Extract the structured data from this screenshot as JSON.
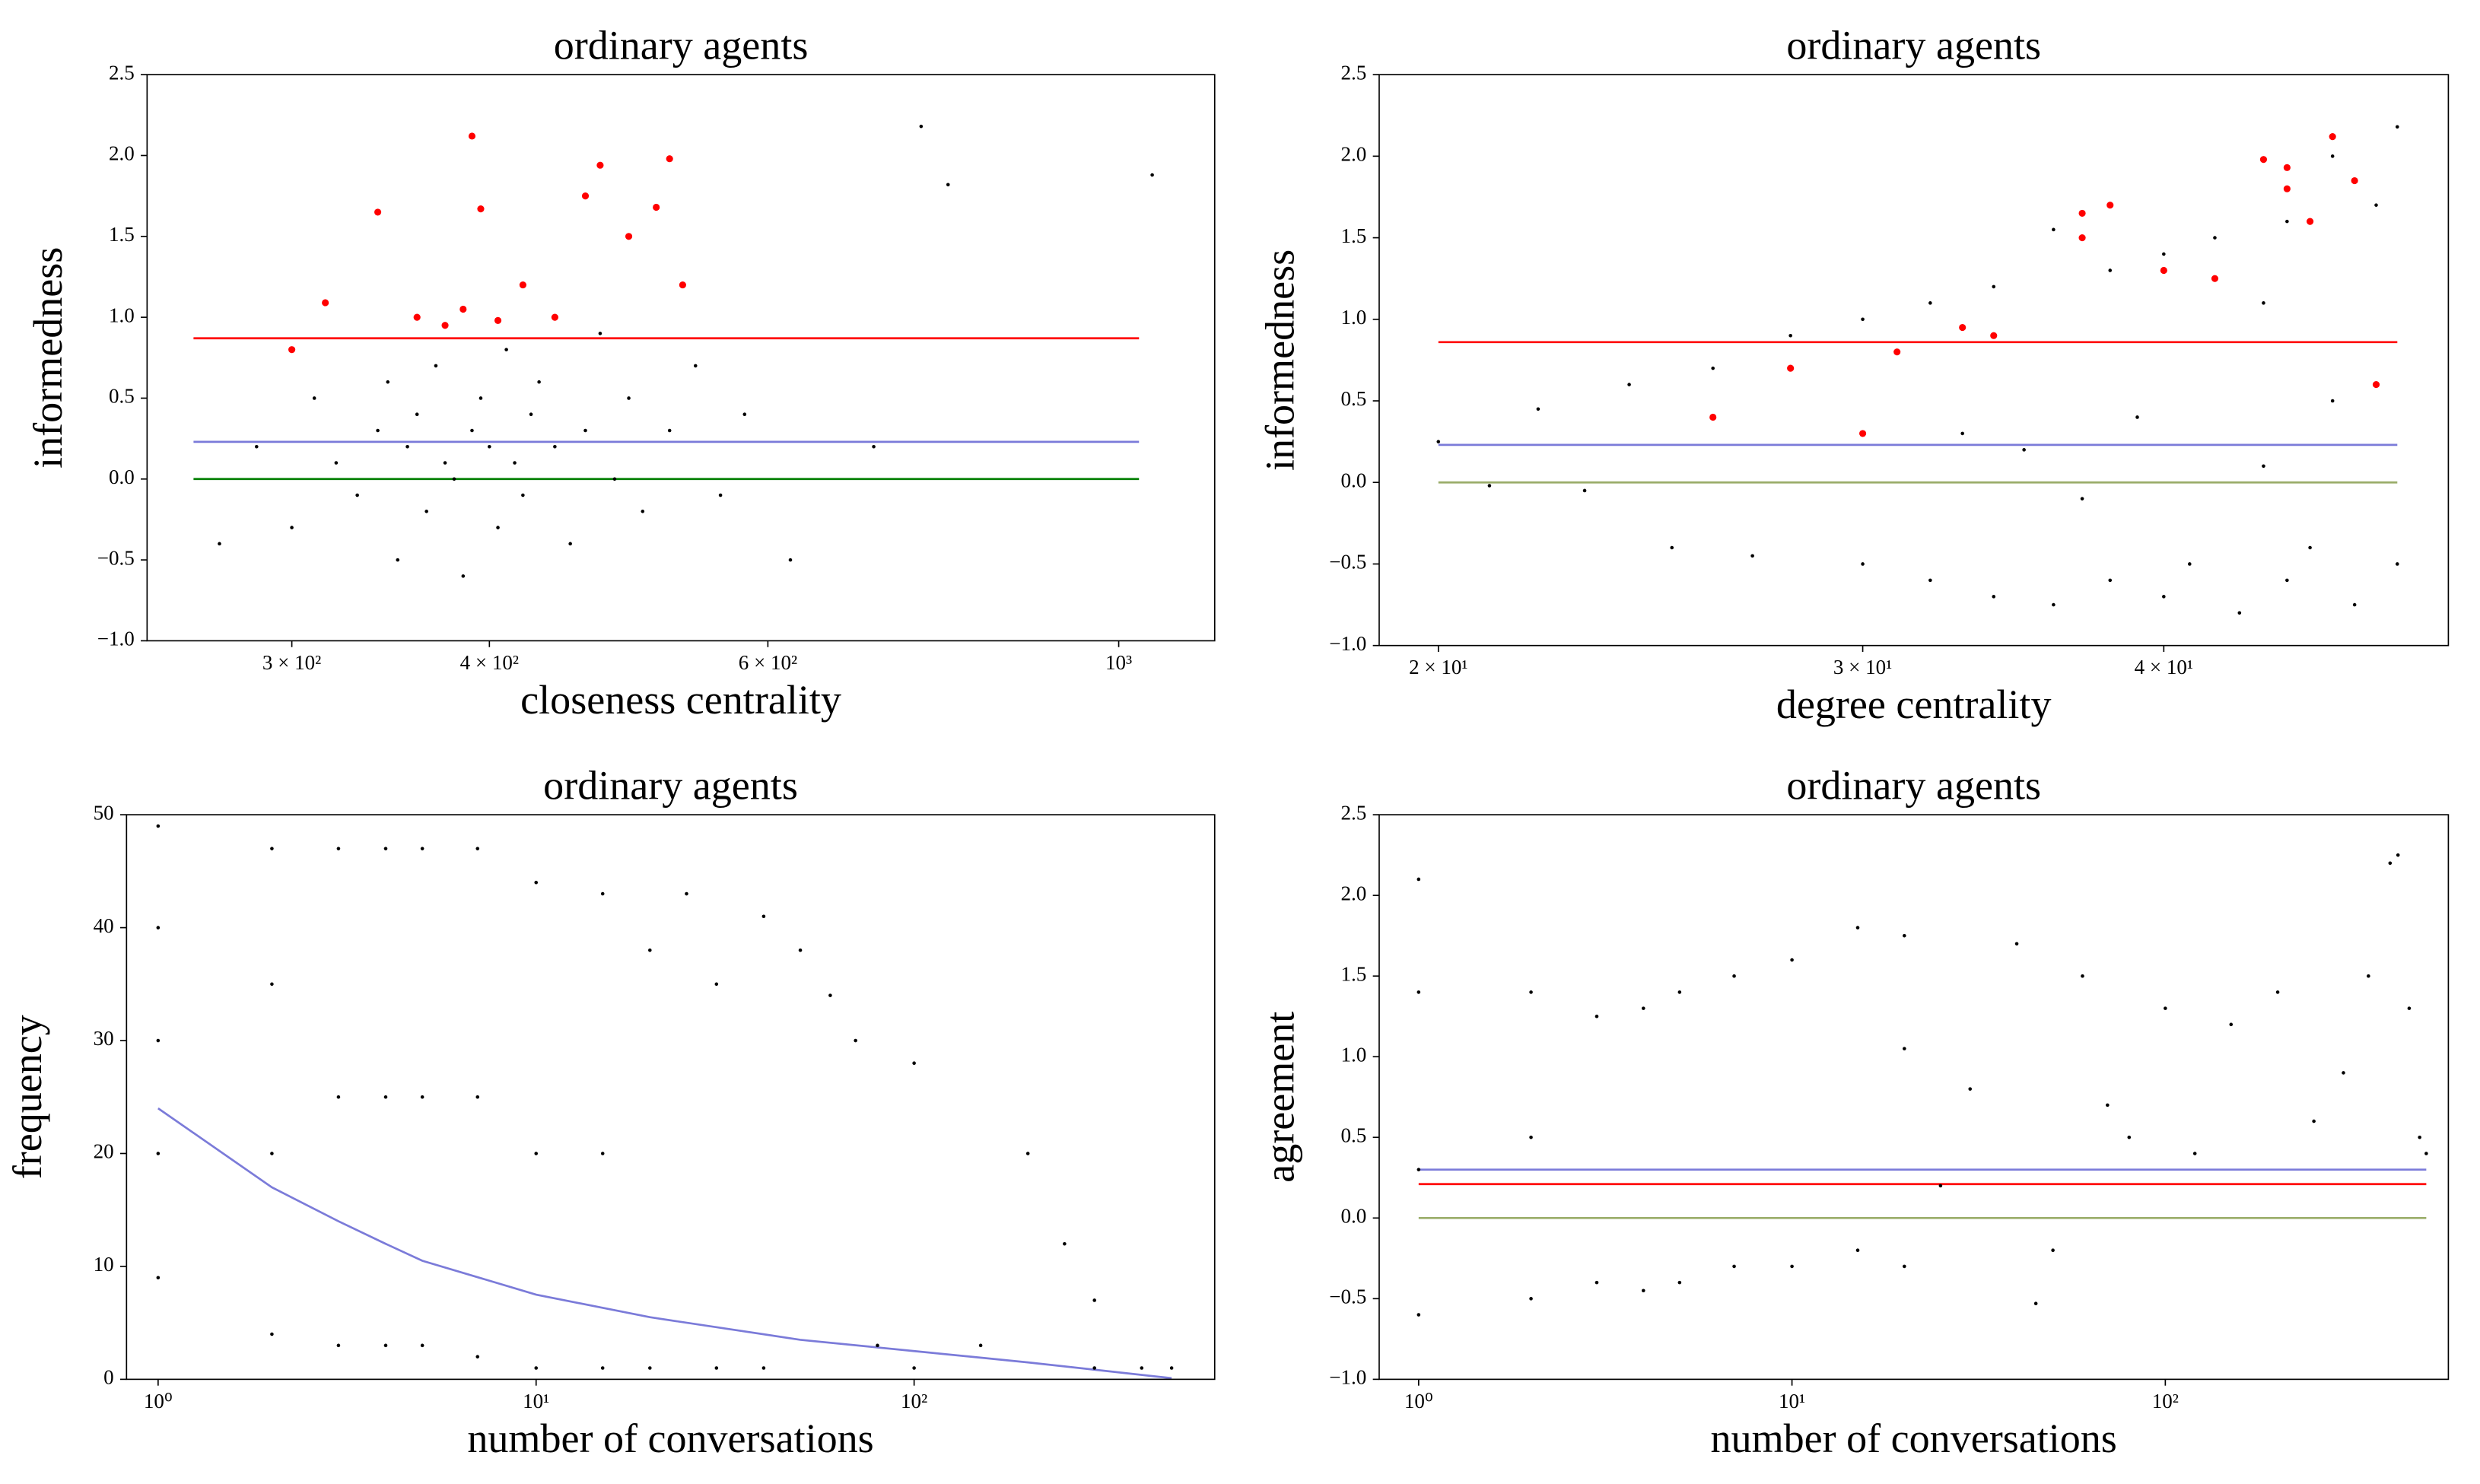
{
  "chart_data": [
    {
      "type": "scatter",
      "title": "ordinary agents",
      "xlabel": "closeness centrality",
      "ylabel": "informedness",
      "xscale": "log",
      "xlim": [
        243,
        1150
      ],
      "ylim": [
        -1,
        2.5
      ],
      "xticks": [
        {
          "value": 300,
          "label": "3 × 10²"
        },
        {
          "value": 400,
          "label": "4 × 10²"
        },
        {
          "value": 600,
          "label": "6 × 10²"
        },
        {
          "value": 1000,
          "label": "10³"
        }
      ],
      "yticks": [
        {
          "value": -1,
          "label": "−1.0"
        },
        {
          "value": -0.5,
          "label": "−0.5"
        },
        {
          "value": 0,
          "label": "0.0"
        },
        0.5,
        {
          "value": 1,
          "label": "1.0"
        },
        1.5,
        {
          "value": 2,
          "label": "2.0"
        },
        2.5
      ],
      "series": [
        {
          "color": "#000000",
          "x": [
            270,
            285,
            300,
            310,
            320,
            330,
            340,
            345,
            350,
            355,
            360,
            365,
            370,
            375,
            380,
            385,
            390,
            395,
            400,
            405,
            410,
            415,
            420,
            425,
            430,
            440,
            450,
            460,
            470,
            480,
            490,
            500,
            520,
            540,
            560,
            580,
            620,
            700,
            780,
            1050,
            750
          ],
          "y": [
            -0.4,
            0.2,
            -0.3,
            0.5,
            0.1,
            -0.1,
            0.3,
            0.6,
            -0.5,
            0.2,
            0.4,
            -0.2,
            0.7,
            0.1,
            0.0,
            -0.6,
            0.3,
            0.5,
            0.2,
            -0.3,
            0.8,
            0.1,
            -0.1,
            0.4,
            0.6,
            0.2,
            -0.4,
            0.3,
            0.9,
            0.0,
            0.5,
            -0.2,
            0.3,
            0.7,
            -0.1,
            0.4,
            -0.5,
            0.2,
            1.82,
            1.88,
            2.18
          ]
        },
        {
          "color": "#ff0000",
          "x": [
            300,
            315,
            340,
            360,
            375,
            385,
            390,
            395,
            405,
            420,
            440,
            460,
            470,
            490,
            510,
            520,
            530
          ],
          "y": [
            0.8,
            1.09,
            1.65,
            1.0,
            0.95,
            1.05,
            2.12,
            1.67,
            0.98,
            1.2,
            1.0,
            1.75,
            1.94,
            1.5,
            1.68,
            1.98,
            1.2
          ]
        }
      ],
      "lines": [
        {
          "color": "#ff0000",
          "x": [
            260,
            1030
          ],
          "y": [
            0.87,
            0.87
          ]
        },
        {
          "color": "#7b7bd9",
          "x": [
            260,
            1030
          ],
          "y": [
            0.23,
            0.23
          ]
        },
        {
          "color": "#008000",
          "x": [
            260,
            1030
          ],
          "y": [
            0.0,
            0.0
          ]
        }
      ]
    },
    {
      "type": "scatter",
      "title": "ordinary agents",
      "xlabel": "degree centrality",
      "ylabel": "informedness",
      "xscale": "log",
      "xlim": [
        18.9,
        52.5
      ],
      "ylim": [
        -1,
        2.5
      ],
      "xticks": [
        {
          "value": 20,
          "label": "2 × 10¹"
        },
        {
          "value": 30,
          "label": "3 × 10¹"
        },
        {
          "value": 40,
          "label": "4 × 10¹"
        }
      ],
      "yticks": [
        {
          "value": -1,
          "label": "−1.0"
        },
        {
          "value": -0.5,
          "label": "−0.5"
        },
        {
          "value": 0,
          "label": "0.0"
        },
        0.5,
        {
          "value": 1,
          "label": "1.0"
        },
        1.5,
        {
          "value": 2,
          "label": "2.0"
        },
        2.5
      ],
      "series": [
        {
          "color": "#000000",
          "x": [
            20,
            21,
            22,
            23,
            24,
            25,
            26,
            27,
            28,
            30,
            30,
            32,
            32,
            34,
            34,
            36,
            36,
            37,
            38,
            38,
            40,
            40,
            41,
            42,
            43,
            44,
            45,
            45,
            46,
            47,
            48,
            48,
            49,
            50,
            50,
            33,
            35,
            39,
            44,
            47
          ],
          "y": [
            0.25,
            -0.02,
            0.45,
            -0.05,
            0.6,
            -0.4,
            0.7,
            -0.45,
            0.9,
            -0.5,
            1.0,
            -0.6,
            1.1,
            -0.7,
            1.2,
            -0.75,
            1.55,
            -0.1,
            -0.6,
            1.3,
            -0.7,
            1.4,
            -0.5,
            1.5,
            -0.8,
            1.1,
            -0.6,
            1.6,
            -0.4,
            2.0,
            -0.75,
            1.85,
            1.7,
            -0.5,
            2.18,
            0.3,
            0.2,
            0.4,
            0.1,
            0.5
          ]
        },
        {
          "color": "#ff0000",
          "x": [
            26,
            28,
            30,
            31,
            33,
            34,
            37,
            37,
            38,
            40,
            42,
            44,
            45,
            45,
            46,
            47,
            48,
            49
          ],
          "y": [
            0.4,
            0.7,
            0.3,
            0.8,
            0.95,
            0.9,
            1.65,
            1.5,
            1.7,
            1.3,
            1.25,
            1.98,
            1.93,
            1.8,
            1.6,
            2.12,
            1.85,
            0.6
          ]
        }
      ],
      "lines": [
        {
          "color": "#ff0000",
          "x": [
            20,
            50
          ],
          "y": [
            0.86,
            0.86
          ]
        },
        {
          "color": "#7b7bd9",
          "x": [
            20,
            50
          ],
          "y": [
            0.23,
            0.23
          ]
        },
        {
          "color": "#9aad6a",
          "x": [
            20,
            50
          ],
          "y": [
            0.0,
            0.0
          ]
        }
      ]
    },
    {
      "type": "scatter",
      "title": "ordinary agents",
      "xlabel": "number of conversations",
      "ylabel": "frequency",
      "xscale": "log",
      "xlim": [
        0.825,
        624
      ],
      "ylim": [
        0,
        50
      ],
      "xticks": [
        {
          "value": 1,
          "label": "10⁰"
        },
        {
          "value": 10,
          "label": "10¹"
        },
        {
          "value": 100,
          "label": "10²"
        }
      ],
      "yticks": [
        0,
        10,
        20,
        30,
        40,
        50
      ],
      "series": [
        {
          "color": "#000000",
          "x": [
            1,
            1,
            1,
            1,
            1,
            2,
            2,
            2,
            2,
            3,
            3,
            3,
            4,
            4,
            4,
            5,
            5,
            5,
            7,
            7,
            7,
            10,
            10,
            10,
            15,
            15,
            15,
            20,
            20,
            25,
            30,
            30,
            40,
            40,
            50,
            60,
            70,
            80,
            100,
            100,
            150,
            200,
            250,
            300,
            300,
            400,
            480
          ],
          "y": [
            9,
            20,
            30,
            40,
            49,
            4,
            20,
            35,
            47,
            3,
            25,
            47,
            3,
            25,
            47,
            3,
            25,
            47,
            2,
            25,
            47,
            1,
            20,
            44,
            1,
            20,
            43,
            1,
            38,
            43,
            1,
            35,
            1,
            41,
            38,
            34,
            30,
            3,
            28,
            1,
            3,
            20,
            12,
            7,
            1,
            1,
            1
          ]
        }
      ],
      "lines": [
        {
          "color": "#7b7bd9",
          "x": [
            1,
            2,
            3,
            4,
            5,
            10,
            20,
            50,
            100,
            200,
            480
          ],
          "y": [
            24,
            17,
            14,
            12,
            10.5,
            7.5,
            5.5,
            3.5,
            2.5,
            1.5,
            0.1
          ]
        }
      ]
    },
    {
      "type": "scatter",
      "title": "ordinary agents",
      "xlabel": "number of conversations",
      "ylabel": "agreement",
      "xscale": "log",
      "xlim": [
        0.784,
        573
      ],
      "ylim": [
        -1,
        2.5
      ],
      "xticks": [
        {
          "value": 1,
          "label": "10⁰"
        },
        {
          "value": 10,
          "label": "10¹"
        },
        {
          "value": 100,
          "label": "10²"
        }
      ],
      "yticks": [
        {
          "value": -1,
          "label": "−1.0"
        },
        {
          "value": -0.5,
          "label": "−0.5"
        },
        {
          "value": 0,
          "label": "0.0"
        },
        0.5,
        {
          "value": 1,
          "label": "1.0"
        },
        1.5,
        {
          "value": 2,
          "label": "2.0"
        },
        2.5
      ],
      "series": [
        {
          "color": "#000000",
          "x": [
            1,
            1,
            1,
            1,
            2,
            2,
            2,
            3,
            3,
            4,
            4,
            5,
            5,
            7,
            7,
            10,
            10,
            15,
            15,
            20,
            20,
            25,
            30,
            40,
            50,
            60,
            80,
            100,
            120,
            150,
            200,
            250,
            300,
            350,
            400,
            420,
            450,
            480,
            500,
            45,
            20,
            70
          ],
          "y": [
            -0.6,
            0.3,
            1.4,
            2.1,
            -0.5,
            0.5,
            1.4,
            -0.4,
            1.25,
            -0.45,
            1.3,
            -0.4,
            1.4,
            -0.3,
            1.5,
            -0.3,
            1.6,
            -0.2,
            1.8,
            -0.3,
            1.75,
            0.2,
            0.8,
            1.7,
            -0.2,
            1.5,
            0.5,
            1.3,
            0.4,
            1.2,
            1.4,
            0.6,
            0.9,
            1.5,
            2.2,
            2.25,
            1.3,
            0.5,
            0.4,
            -0.53,
            1.05,
            0.7
          ]
        }
      ],
      "lines": [
        {
          "color": "#7b7bd9",
          "x": [
            1,
            500
          ],
          "y": [
            0.3,
            0.3
          ]
        },
        {
          "color": "#ff0000",
          "x": [
            1,
            500
          ],
          "y": [
            0.21,
            0.21
          ]
        },
        {
          "color": "#9aad6a",
          "x": [
            1,
            500
          ],
          "y": [
            0.0,
            0.0
          ]
        }
      ]
    }
  ]
}
